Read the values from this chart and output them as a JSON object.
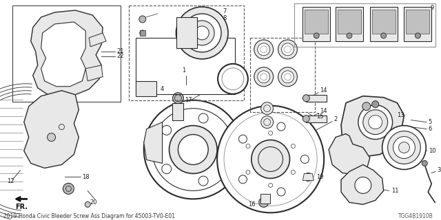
{
  "title": "2019 Honda Civic Bleeder Screw Ass Diagram for 45003-TV0-E01",
  "bg_color": "#ffffff",
  "fig_width": 6.4,
  "fig_height": 3.2,
  "dpi": 100,
  "diagram_code": "TGG4B1910B",
  "text_color": "#1a1a1a",
  "line_color": "#2a2a2a",
  "gray_fill": "#d0d0d0",
  "light_gray": "#e8e8e8",
  "dark_gray": "#888888"
}
